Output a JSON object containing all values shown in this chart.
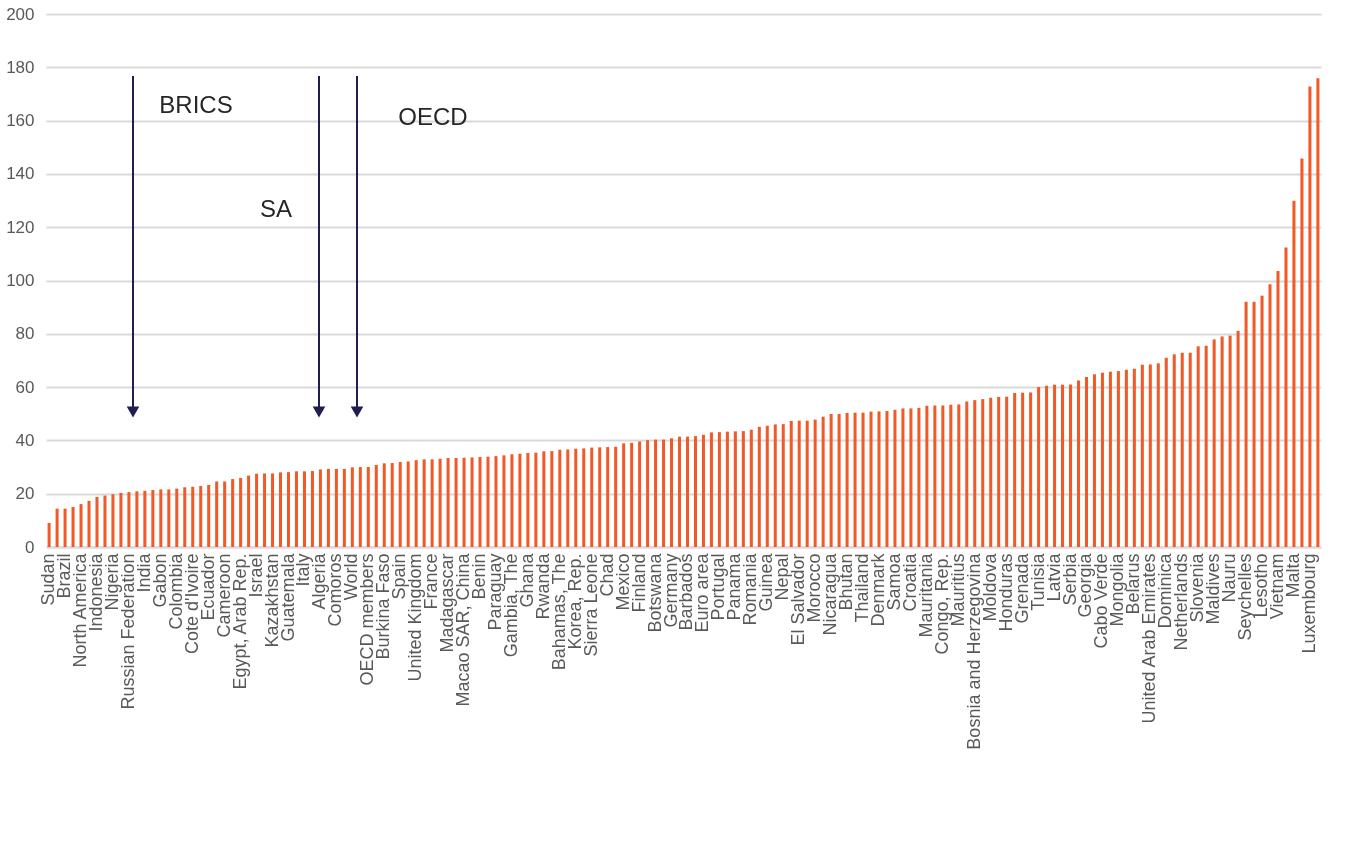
{
  "chart_data": {
    "type": "bar",
    "categories": [
      "Sudan",
      null,
      "Brazil",
      null,
      "North America",
      null,
      "Indonesia",
      null,
      "Nigeria",
      null,
      "Russian Federation",
      null,
      "India",
      null,
      "Gabon",
      null,
      "Colombia",
      null,
      "Cote d'Ivoire",
      null,
      "Ecuador",
      null,
      "Cameroon",
      null,
      "Egypt, Arab Rep.",
      null,
      "Israel",
      null,
      "Kazakhstan",
      null,
      "Guatemala",
      null,
      "Italy",
      null,
      "Algeria",
      null,
      "Comoros",
      null,
      "World",
      null,
      "OECD members",
      null,
      "Burkina Faso",
      null,
      "Spain",
      null,
      "United Kingdom",
      null,
      "France",
      null,
      "Madagascar",
      null,
      "Macao SAR, China",
      null,
      "Benin",
      null,
      "Paraguay",
      null,
      "Gambia, The",
      null,
      "Ghana",
      null,
      "Rwanda",
      null,
      "Bahamas, The",
      null,
      "Korea, Rep.",
      null,
      "Sierra Leone",
      null,
      "Chad",
      null,
      "Mexico",
      null,
      "Finland",
      null,
      "Botswana",
      null,
      "Germany",
      null,
      "Barbados",
      null,
      "Euro area",
      null,
      "Portugal",
      null,
      "Panama",
      null,
      "Romania",
      null,
      "Guinea",
      null,
      "Nepal",
      null,
      "El Salvador",
      null,
      "Morocco",
      null,
      "Nicaragua",
      null,
      "Bhutan",
      null,
      "Thailand",
      null,
      "Denmark",
      null,
      "Samoa",
      null,
      "Croatia",
      null,
      "Mauritania",
      null,
      "Congo, Rep.",
      null,
      "Mauritius",
      null,
      "Bosnia and Herzegovina",
      null,
      "Moldova",
      null,
      "Honduras",
      null,
      "Grenada",
      null,
      "Tunisia",
      null,
      "Latvia",
      null,
      "Serbia",
      null,
      "Georgia",
      null,
      "Cabo Verde",
      null,
      "Mongolia",
      null,
      "Belarus",
      null,
      "United Arab Emirates",
      null,
      "Dominica",
      null,
      "Netherlands",
      null,
      "Slovenia",
      null,
      "Maldives",
      null,
      "Nauru",
      null,
      "Seychelles",
      null,
      "Lesotho",
      null,
      "Vietnam",
      null,
      "Malta",
      null,
      "Luxembourg",
      null
    ],
    "values": [
      9,
      14.4,
      14.4,
      15,
      16.1,
      17.3,
      18.8,
      19.3,
      19.8,
      20.3,
      20.6,
      20.9,
      21.1,
      21.4,
      21.6,
      21.6,
      21.9,
      22.4,
      22.6,
      22.9,
      23.3,
      24.6,
      24.6,
      25.5,
      25.9,
      26.8,
      27.5,
      27.6,
      27.6,
      28,
      28.1,
      28.4,
      28.4,
      28.5,
      29.1,
      29.3,
      29.3,
      29.3,
      29.9,
      30,
      30,
      30.8,
      31.4,
      31.5,
      31.9,
      32.1,
      32.6,
      32.9,
      32.9,
      33.1,
      33.4,
      33.4,
      33.5,
      33.6,
      33.8,
      33.9,
      34.1,
      34.4,
      34.8,
      35,
      35.3,
      35.4,
      35.9,
      36,
      36.5,
      36.6,
      36.9,
      37,
      37.3,
      37.4,
      37.5,
      37.6,
      38.9,
      39.1,
      39.6,
      40.1,
      40.3,
      40.3,
      40.8,
      41.4,
      41.4,
      41.6,
      42.1,
      43,
      43.1,
      43.3,
      43.4,
      43.5,
      44,
      45.1,
      45.5,
      46,
      46.1,
      47.3,
      47.4,
      47.4,
      47.8,
      48.9,
      49.9,
      49.9,
      50.3,
      50.4,
      50.4,
      50.8,
      50.9,
      51,
      51.5,
      52,
      52,
      52.2,
      53,
      53.1,
      53.1,
      53.4,
      53.5,
      54.6,
      55.1,
      55.5,
      56,
      56.3,
      56.4,
      57.8,
      57.9,
      58,
      60,
      60.5,
      60.9,
      60.9,
      61,
      62.5,
      63.8,
      64.8,
      65.4,
      65.8,
      66,
      66.5,
      66.9,
      68.4,
      68.5,
      68.9,
      71,
      72.3,
      72.9,
      72.9,
      75.3,
      75.5,
      77.9,
      79,
      79.3,
      81.1,
      92,
      92,
      94.3,
      98.6,
      103.6,
      112.4,
      129.9,
      145.8,
      172.8,
      175.9
    ],
    "color": "#f05a28",
    "ylim": [
      0,
      200
    ],
    "yticks": [
      0,
      20,
      40,
      60,
      80,
      100,
      120,
      140,
      160,
      180,
      200
    ],
    "grid": "y",
    "annotations": [
      "BRICS",
      "SA",
      "OECD"
    ]
  }
}
